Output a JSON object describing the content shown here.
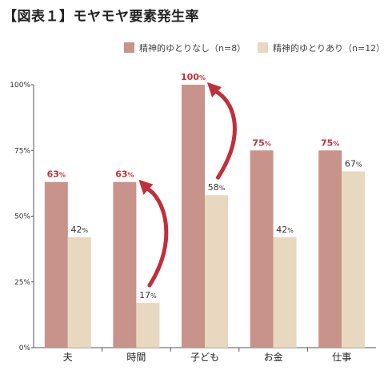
{
  "chart_data": {
    "type": "bar",
    "title": "【図表１】モヤモヤ要素発生率",
    "categories": [
      "夫",
      "時間",
      "子ども",
      "お金",
      "仕事"
    ],
    "series": [
      {
        "name": "精神的ゆとりなし（n=8）",
        "values": [
          63,
          63,
          100,
          75,
          75
        ],
        "color": "#c8938a",
        "label_color": "#c8303a"
      },
      {
        "name": "精神的ゆとりあり（n=12）",
        "values": [
          42,
          17,
          58,
          42,
          67
        ],
        "color": "#e8d8c0",
        "label_color": "#333333"
      }
    ],
    "value_labels": [
      [
        "63%",
        "63%",
        "100%",
        "75%",
        "75%"
      ],
      [
        "42%",
        "17%",
        "58%",
        "42%",
        "67%"
      ]
    ],
    "ylim": [
      0,
      100
    ],
    "yticks": [
      "0%",
      "25%",
      "50%",
      "75%",
      "100%"
    ],
    "legend_position": "top-right",
    "annotations": [
      {
        "type": "curved-arrow",
        "color": "#c0303a",
        "from": "時間",
        "to": "時間"
      },
      {
        "type": "curved-arrow",
        "color": "#c0303a",
        "from": "子ども",
        "to": "子ども"
      }
    ]
  }
}
